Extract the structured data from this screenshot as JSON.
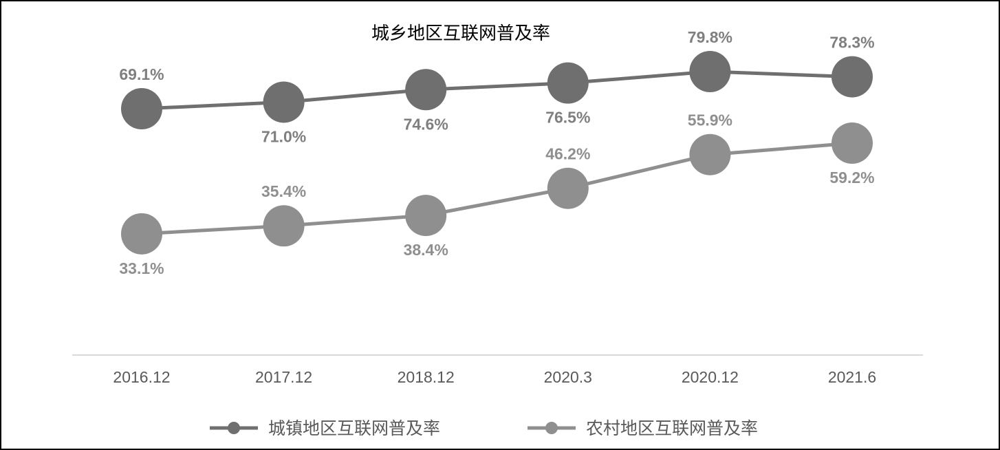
{
  "chart_data": {
    "type": "line",
    "title": "城乡地区互联网普及率",
    "categories": [
      "2016.12",
      "2017.12",
      "2018.12",
      "2020.3",
      "2020.12",
      "2021.6"
    ],
    "series": [
      {
        "name": "城镇地区互联网普及率",
        "values": [
          69.1,
          71.0,
          74.6,
          76.5,
          79.8,
          78.3
        ],
        "labels": [
          "69.1%",
          "71.0%",
          "74.6%",
          "76.5%",
          "79.8%",
          "78.3%"
        ],
        "label_position": [
          "above",
          "below",
          "below",
          "below",
          "above",
          "above"
        ],
        "color": "#6f6f6f",
        "label_color": "#7f7f7f"
      },
      {
        "name": "农村地区互联网普及率",
        "values": [
          33.1,
          35.4,
          38.4,
          46.2,
          55.9,
          59.2
        ],
        "labels": [
          "33.1%",
          "35.4%",
          "38.4%",
          "46.2%",
          "55.9%",
          "59.2%"
        ],
        "label_position": [
          "below",
          "above",
          "below",
          "above",
          "above",
          "below"
        ],
        "color": "#8f8f8f",
        "label_color": "#8f8f8f"
      }
    ],
    "legend_position": "bottom",
    "grid": false,
    "ylim": [
      0,
      100
    ]
  }
}
